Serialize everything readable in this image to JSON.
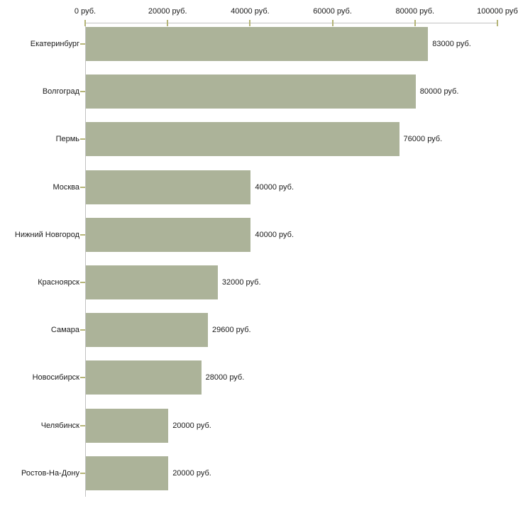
{
  "chart_data": {
    "type": "bar",
    "orientation": "horizontal",
    "title": "",
    "categories": [
      "Екатеринбург",
      "Волгоград",
      "Пермь",
      "Москва",
      "Нижний Новгород",
      "Красноярск",
      "Самара",
      "Новосибирск",
      "Челябинск",
      "Ростов-На-Дону"
    ],
    "values": [
      83000,
      80000,
      76000,
      40000,
      40000,
      32000,
      29600,
      28000,
      20000,
      20000
    ],
    "value_labels": [
      "83000 руб.",
      "80000 руб.",
      "76000 руб.",
      "40000 руб.",
      "40000 руб.",
      "32000 руб.",
      "29600 руб.",
      "28000 руб.",
      "20000 руб.",
      "20000 руб."
    ],
    "x_axis": {
      "position": "top",
      "range": [
        0,
        100000
      ],
      "ticks": [
        0,
        20000,
        40000,
        60000,
        80000,
        100000
      ],
      "tick_labels": [
        "0 руб.",
        "20000 руб.",
        "40000 руб.",
        "60000 руб.",
        "80000 руб.",
        "100000 руб"
      ]
    },
    "ylabel": "",
    "xlabel": "",
    "grid": false,
    "legend": false,
    "colors": {
      "bar": "#acb399",
      "axis_line": "#c2c2c2",
      "tick_mark": "#b5b578",
      "text": "#1a1a1a",
      "background": "#ffffff"
    }
  }
}
